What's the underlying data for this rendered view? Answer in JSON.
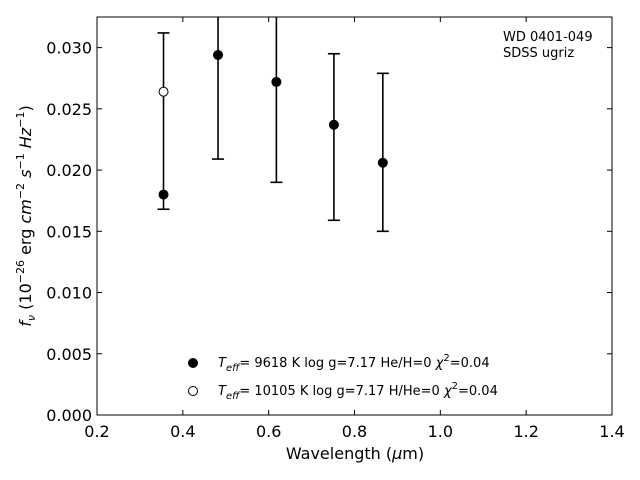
{
  "chart_data": {
    "type": "scatter",
    "title": "",
    "xlabel": "Wavelength (μm)",
    "ylabel": "fν (10⁻²⁶ erg cm⁻² s⁻¹ Hz⁻¹)",
    "xlim": [
      0.2,
      1.4
    ],
    "ylim": [
      0.0,
      0.0325
    ],
    "xticks": [
      "0.2",
      "0.4",
      "0.6",
      "0.8",
      "1.0",
      "1.2",
      "1.4"
    ],
    "yticks": [
      "0.000",
      "0.005",
      "0.010",
      "0.015",
      "0.020",
      "0.025",
      "0.030"
    ],
    "annotation_lines": [
      "WD 0401-049",
      "SDSS ugriz"
    ],
    "observations": [
      {
        "x": 0.355,
        "low": 0.0168,
        "high": 0.0312
      },
      {
        "x": 0.482,
        "low": 0.0209,
        "high": 0.0325
      },
      {
        "x": 0.618,
        "low": 0.019,
        "high": 0.0325
      },
      {
        "x": 0.752,
        "low": 0.0159,
        "high": 0.0295
      },
      {
        "x": 0.866,
        "low": 0.015,
        "high": 0.0279
      }
    ],
    "series": [
      {
        "marker": "filled",
        "legend": {
          "teff": "9618 K",
          "logg": "log g=7.17",
          "comp": "He/H=0",
          "chi2": "=0.04"
        },
        "x": [
          0.355,
          0.482,
          0.618,
          0.752,
          0.866
        ],
        "y": [
          0.018,
          0.0294,
          0.0272,
          0.0237,
          0.0206
        ]
      },
      {
        "marker": "open",
        "legend": {
          "teff": "10105 K",
          "logg": "log g=7.17",
          "comp": "H/He=0",
          "chi2": "=0.04"
        },
        "x": [
          0.355
        ],
        "y": [
          0.0264
        ]
      }
    ],
    "legend_position": "lower-center",
    "grid": false
  }
}
